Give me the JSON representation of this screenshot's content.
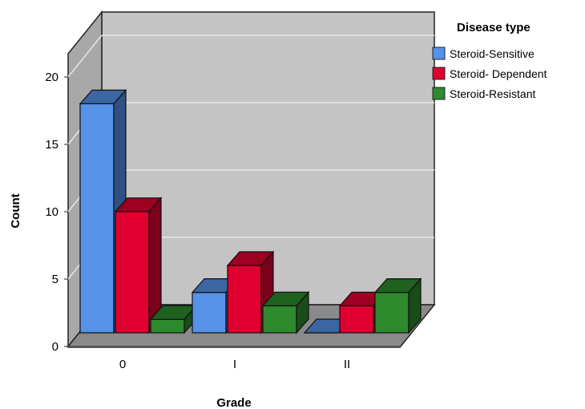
{
  "chart_data": {
    "type": "bar",
    "title": "",
    "xlabel": "Grade",
    "ylabel": "Count",
    "categories": [
      "0",
      "I",
      "II"
    ],
    "ylim": [
      0,
      20
    ],
    "yticks": [
      0,
      5,
      10,
      15,
      20
    ],
    "grid": true,
    "three_d": true,
    "legend": {
      "title": "Disease type",
      "placement": "right"
    },
    "series": [
      {
        "name": "Steroid-Sensitive",
        "color": "#5592e8",
        "values": [
          17,
          3,
          0
        ]
      },
      {
        "name": "Steroid- Dependent",
        "color": "#e0002f",
        "values": [
          9,
          5,
          2
        ]
      },
      {
        "name": "Steroid-Resistant",
        "color": "#2d8a2d",
        "values": [
          1,
          2,
          3
        ]
      }
    ]
  },
  "colors": {
    "wall": "#c4c4c4",
    "floor": "#8a8a8a",
    "side_wall": "#a8a8a8",
    "grid": "#e6e6e6"
  }
}
